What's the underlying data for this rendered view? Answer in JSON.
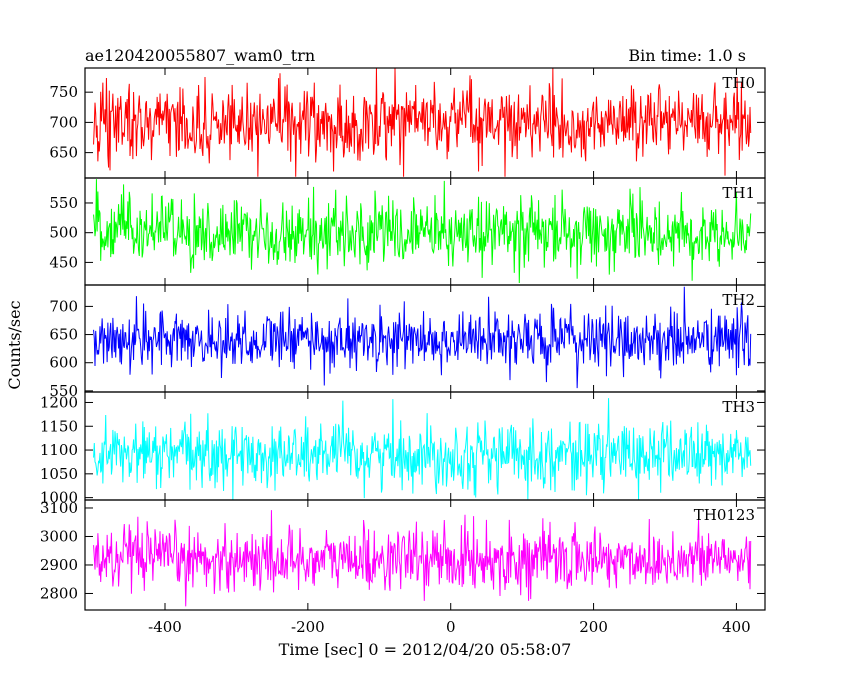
{
  "header": {
    "title": "ae120420055807_wam0_trn",
    "bin_time": "Bin time: 1.0 s"
  },
  "chart_data": {
    "type": "line",
    "title": "ae120420055807_wam0_trn",
    "subtitle": "Bin time: 1.0 s",
    "xlabel": "Time [sec] 0 = 2012/04/20 05:58:07",
    "ylabel": "Counts/sec",
    "xlim": [
      -512,
      440
    ],
    "xticks": [
      -400,
      -200,
      0,
      200,
      400
    ],
    "x_data_range": [
      -500,
      420
    ],
    "bin_time_s": 1.0,
    "grid": false,
    "panels": [
      {
        "name": "TH0",
        "color": "#ff0000",
        "ylim": [
          608,
          790
        ],
        "yticks": [
          650,
          700,
          750
        ],
        "series_profile": {
          "mean": 700,
          "spread_1sigma": 30,
          "min": 610,
          "max": 790
        }
      },
      {
        "name": "TH1",
        "color": "#00ff00",
        "ylim": [
          412,
          592
        ],
        "yticks": [
          450,
          500,
          550
        ],
        "series_profile": {
          "mean": 500,
          "spread_1sigma": 28,
          "min": 415,
          "max": 590
        }
      },
      {
        "name": "TH2",
        "color": "#0000ff",
        "ylim": [
          548,
          738
        ],
        "yticks": [
          550,
          600,
          650,
          700
        ],
        "series_profile": {
          "mean": 640,
          "spread_1sigma": 27,
          "min": 555,
          "max": 735
        }
      },
      {
        "name": "TH3",
        "color": "#00ffff",
        "ylim": [
          995,
          1222
        ],
        "yticks": [
          1000,
          1050,
          1100,
          1150,
          1200
        ],
        "series_profile": {
          "mean": 1090,
          "spread_1sigma": 35,
          "min": 995,
          "max": 1220
        }
      },
      {
        "name": "TH0123",
        "color": "#ff00ff",
        "ylim": [
          2742,
          3128
        ],
        "yticks": [
          2800,
          2900,
          3000,
          3100
        ],
        "series_profile": {
          "mean": 2920,
          "spread_1sigma": 55,
          "min": 2745,
          "max": 3125
        }
      }
    ]
  }
}
